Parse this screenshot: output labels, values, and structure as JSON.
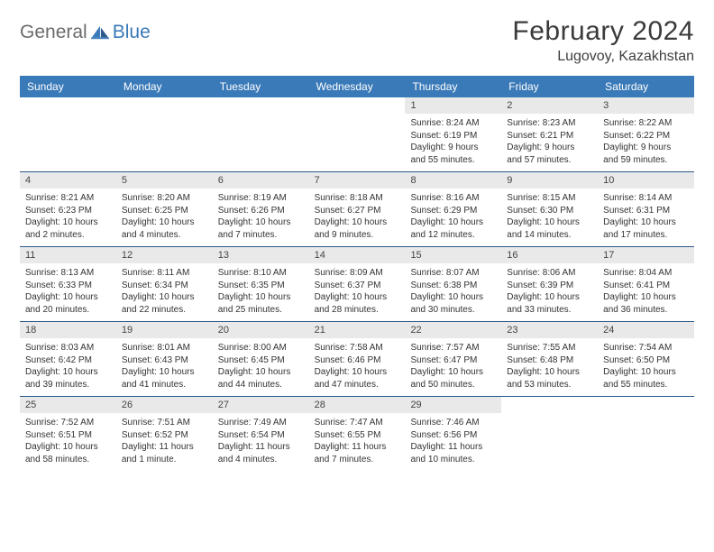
{
  "logo": {
    "word1": "General",
    "word2": "Blue"
  },
  "title": "February 2024",
  "location": "Lugovoy, Kazakhstan",
  "colors": {
    "header_bg": "#3a7ab8",
    "header_text": "#ffffff",
    "daynum_bg": "#e9e9e9",
    "row_border": "#2d5a8a",
    "logo_gray": "#6b6b6b",
    "logo_blue": "#3a7ab8"
  },
  "weekdays": [
    "Sunday",
    "Monday",
    "Tuesday",
    "Wednesday",
    "Thursday",
    "Friday",
    "Saturday"
  ],
  "weeks": [
    [
      {
        "empty": true
      },
      {
        "empty": true
      },
      {
        "empty": true
      },
      {
        "empty": true
      },
      {
        "day": "1",
        "sunrise": "Sunrise: 8:24 AM",
        "sunset": "Sunset: 6:19 PM",
        "daylight1": "Daylight: 9 hours",
        "daylight2": "and 55 minutes."
      },
      {
        "day": "2",
        "sunrise": "Sunrise: 8:23 AM",
        "sunset": "Sunset: 6:21 PM",
        "daylight1": "Daylight: 9 hours",
        "daylight2": "and 57 minutes."
      },
      {
        "day": "3",
        "sunrise": "Sunrise: 8:22 AM",
        "sunset": "Sunset: 6:22 PM",
        "daylight1": "Daylight: 9 hours",
        "daylight2": "and 59 minutes."
      }
    ],
    [
      {
        "day": "4",
        "sunrise": "Sunrise: 8:21 AM",
        "sunset": "Sunset: 6:23 PM",
        "daylight1": "Daylight: 10 hours",
        "daylight2": "and 2 minutes."
      },
      {
        "day": "5",
        "sunrise": "Sunrise: 8:20 AM",
        "sunset": "Sunset: 6:25 PM",
        "daylight1": "Daylight: 10 hours",
        "daylight2": "and 4 minutes."
      },
      {
        "day": "6",
        "sunrise": "Sunrise: 8:19 AM",
        "sunset": "Sunset: 6:26 PM",
        "daylight1": "Daylight: 10 hours",
        "daylight2": "and 7 minutes."
      },
      {
        "day": "7",
        "sunrise": "Sunrise: 8:18 AM",
        "sunset": "Sunset: 6:27 PM",
        "daylight1": "Daylight: 10 hours",
        "daylight2": "and 9 minutes."
      },
      {
        "day": "8",
        "sunrise": "Sunrise: 8:16 AM",
        "sunset": "Sunset: 6:29 PM",
        "daylight1": "Daylight: 10 hours",
        "daylight2": "and 12 minutes."
      },
      {
        "day": "9",
        "sunrise": "Sunrise: 8:15 AM",
        "sunset": "Sunset: 6:30 PM",
        "daylight1": "Daylight: 10 hours",
        "daylight2": "and 14 minutes."
      },
      {
        "day": "10",
        "sunrise": "Sunrise: 8:14 AM",
        "sunset": "Sunset: 6:31 PM",
        "daylight1": "Daylight: 10 hours",
        "daylight2": "and 17 minutes."
      }
    ],
    [
      {
        "day": "11",
        "sunrise": "Sunrise: 8:13 AM",
        "sunset": "Sunset: 6:33 PM",
        "daylight1": "Daylight: 10 hours",
        "daylight2": "and 20 minutes."
      },
      {
        "day": "12",
        "sunrise": "Sunrise: 8:11 AM",
        "sunset": "Sunset: 6:34 PM",
        "daylight1": "Daylight: 10 hours",
        "daylight2": "and 22 minutes."
      },
      {
        "day": "13",
        "sunrise": "Sunrise: 8:10 AM",
        "sunset": "Sunset: 6:35 PM",
        "daylight1": "Daylight: 10 hours",
        "daylight2": "and 25 minutes."
      },
      {
        "day": "14",
        "sunrise": "Sunrise: 8:09 AM",
        "sunset": "Sunset: 6:37 PM",
        "daylight1": "Daylight: 10 hours",
        "daylight2": "and 28 minutes."
      },
      {
        "day": "15",
        "sunrise": "Sunrise: 8:07 AM",
        "sunset": "Sunset: 6:38 PM",
        "daylight1": "Daylight: 10 hours",
        "daylight2": "and 30 minutes."
      },
      {
        "day": "16",
        "sunrise": "Sunrise: 8:06 AM",
        "sunset": "Sunset: 6:39 PM",
        "daylight1": "Daylight: 10 hours",
        "daylight2": "and 33 minutes."
      },
      {
        "day": "17",
        "sunrise": "Sunrise: 8:04 AM",
        "sunset": "Sunset: 6:41 PM",
        "daylight1": "Daylight: 10 hours",
        "daylight2": "and 36 minutes."
      }
    ],
    [
      {
        "day": "18",
        "sunrise": "Sunrise: 8:03 AM",
        "sunset": "Sunset: 6:42 PM",
        "daylight1": "Daylight: 10 hours",
        "daylight2": "and 39 minutes."
      },
      {
        "day": "19",
        "sunrise": "Sunrise: 8:01 AM",
        "sunset": "Sunset: 6:43 PM",
        "daylight1": "Daylight: 10 hours",
        "daylight2": "and 41 minutes."
      },
      {
        "day": "20",
        "sunrise": "Sunrise: 8:00 AM",
        "sunset": "Sunset: 6:45 PM",
        "daylight1": "Daylight: 10 hours",
        "daylight2": "and 44 minutes."
      },
      {
        "day": "21",
        "sunrise": "Sunrise: 7:58 AM",
        "sunset": "Sunset: 6:46 PM",
        "daylight1": "Daylight: 10 hours",
        "daylight2": "and 47 minutes."
      },
      {
        "day": "22",
        "sunrise": "Sunrise: 7:57 AM",
        "sunset": "Sunset: 6:47 PM",
        "daylight1": "Daylight: 10 hours",
        "daylight2": "and 50 minutes."
      },
      {
        "day": "23",
        "sunrise": "Sunrise: 7:55 AM",
        "sunset": "Sunset: 6:48 PM",
        "daylight1": "Daylight: 10 hours",
        "daylight2": "and 53 minutes."
      },
      {
        "day": "24",
        "sunrise": "Sunrise: 7:54 AM",
        "sunset": "Sunset: 6:50 PM",
        "daylight1": "Daylight: 10 hours",
        "daylight2": "and 55 minutes."
      }
    ],
    [
      {
        "day": "25",
        "sunrise": "Sunrise: 7:52 AM",
        "sunset": "Sunset: 6:51 PM",
        "daylight1": "Daylight: 10 hours",
        "daylight2": "and 58 minutes."
      },
      {
        "day": "26",
        "sunrise": "Sunrise: 7:51 AM",
        "sunset": "Sunset: 6:52 PM",
        "daylight1": "Daylight: 11 hours",
        "daylight2": "and 1 minute."
      },
      {
        "day": "27",
        "sunrise": "Sunrise: 7:49 AM",
        "sunset": "Sunset: 6:54 PM",
        "daylight1": "Daylight: 11 hours",
        "daylight2": "and 4 minutes."
      },
      {
        "day": "28",
        "sunrise": "Sunrise: 7:47 AM",
        "sunset": "Sunset: 6:55 PM",
        "daylight1": "Daylight: 11 hours",
        "daylight2": "and 7 minutes."
      },
      {
        "day": "29",
        "sunrise": "Sunrise: 7:46 AM",
        "sunset": "Sunset: 6:56 PM",
        "daylight1": "Daylight: 11 hours",
        "daylight2": "and 10 minutes."
      },
      {
        "empty": true
      },
      {
        "empty": true
      }
    ]
  ]
}
